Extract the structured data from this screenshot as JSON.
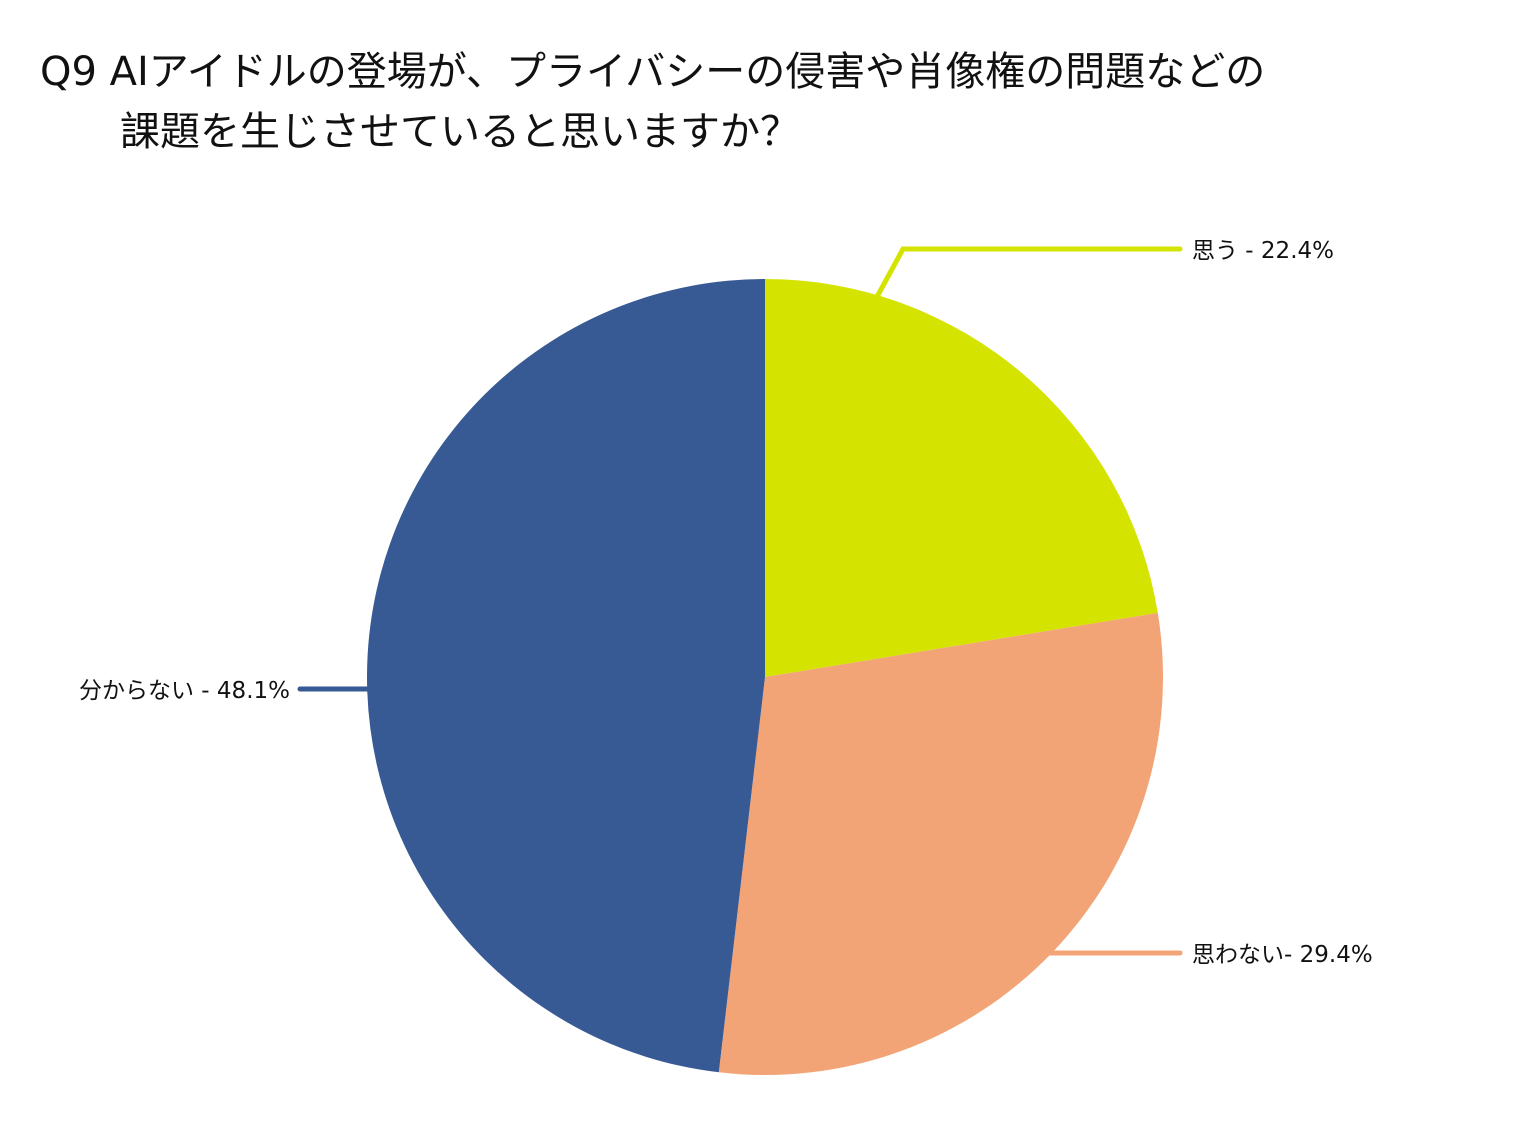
{
  "chart_data": {
    "type": "pie",
    "title": [
      "Q9 AIアイドルの登場が、プライバシーの侵害や肖像権の問題などの",
      "課題を生じさせていると思いますか？"
    ],
    "slices": [
      {
        "label": "思う - 22.4%",
        "category": "思う",
        "value": 22.4,
        "color": "#d4e300"
      },
      {
        "label": "思わない- 29.4%",
        "category": "思わない",
        "value": 29.4,
        "color": "#f3a477"
      },
      {
        "label": "分からない - 48.1%",
        "category": "分からない",
        "value": 48.1,
        "color": "#375a94"
      }
    ],
    "start": "12 o'clock, clockwise",
    "legend": "none"
  }
}
